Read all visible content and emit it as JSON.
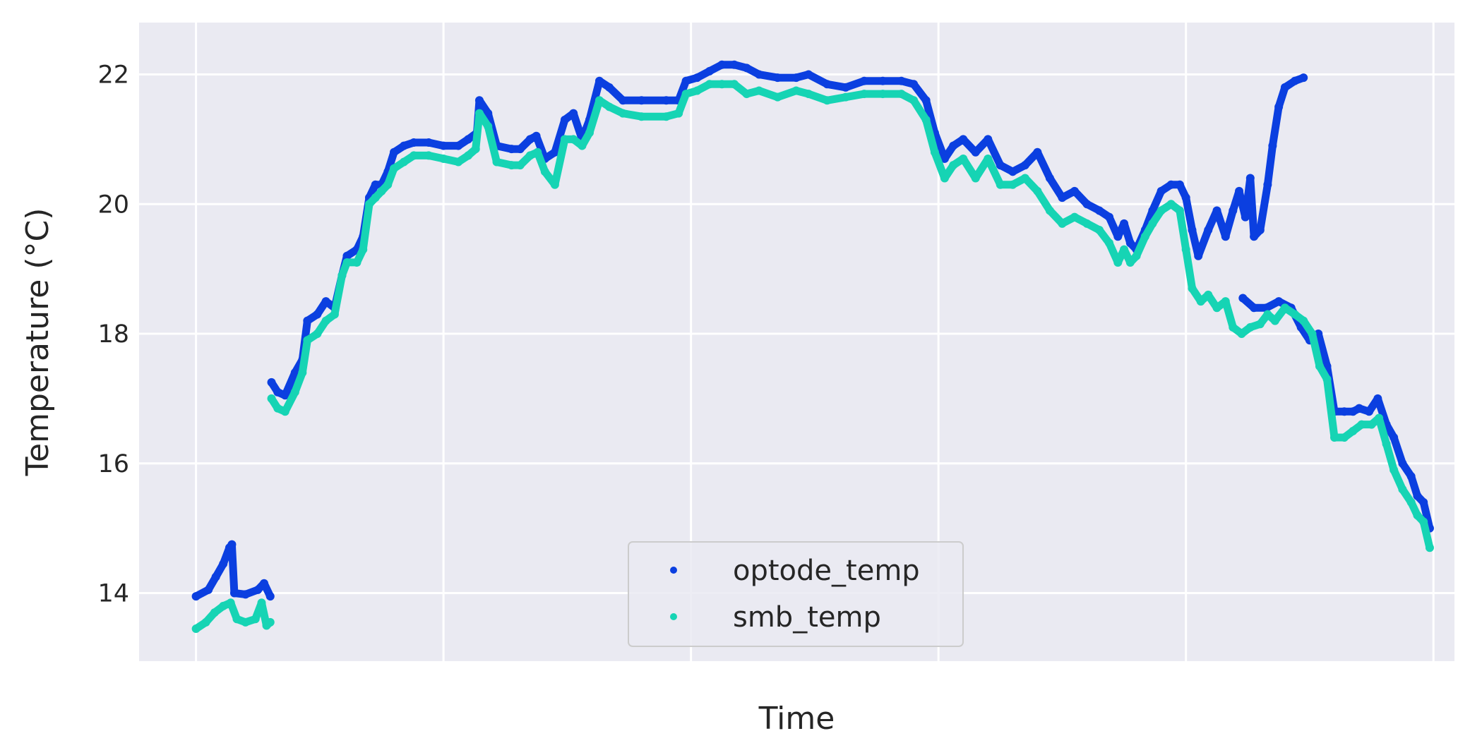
{
  "chart_data": {
    "type": "scatter",
    "title": "",
    "xlabel": "Time",
    "ylabel": "Temperature (°C)",
    "x_ticks_labeled": false,
    "ylim": [
      12.95,
      22.8
    ],
    "xlim": [
      -0.046,
      1.017
    ],
    "yticks": [
      14,
      16,
      18,
      20,
      22
    ],
    "ytick_labels": [
      "14",
      "16",
      "18",
      "20",
      "22"
    ],
    "grid": true,
    "legend_position": "lower center",
    "series": [
      {
        "name": "optode_temp",
        "color": "#0b3fe0",
        "points": [
          [
            0.0,
            13.95
          ],
          [
            0.01,
            14.05
          ],
          [
            0.016,
            14.25
          ],
          [
            0.022,
            14.45
          ],
          [
            0.027,
            14.7
          ],
          [
            0.029,
            14.75
          ],
          [
            0.031,
            14.0
          ],
          [
            0.04,
            13.98
          ],
          [
            0.05,
            14.05
          ],
          [
            0.055,
            14.15
          ],
          [
            0.06,
            13.95
          ],
          [
            0.061,
            17.25
          ],
          [
            0.066,
            17.1
          ],
          [
            0.072,
            17.05
          ],
          [
            0.08,
            17.4
          ],
          [
            0.086,
            17.6
          ],
          [
            0.09,
            18.2
          ],
          [
            0.098,
            18.3
          ],
          [
            0.105,
            18.5
          ],
          [
            0.112,
            18.4
          ],
          [
            0.118,
            18.9
          ],
          [
            0.122,
            19.2
          ],
          [
            0.13,
            19.3
          ],
          [
            0.135,
            19.5
          ],
          [
            0.14,
            20.1
          ],
          [
            0.145,
            20.3
          ],
          [
            0.15,
            20.3
          ],
          [
            0.155,
            20.5
          ],
          [
            0.16,
            20.8
          ],
          [
            0.168,
            20.9
          ],
          [
            0.176,
            20.95
          ],
          [
            0.188,
            20.95
          ],
          [
            0.2,
            20.9
          ],
          [
            0.212,
            20.9
          ],
          [
            0.22,
            21.0
          ],
          [
            0.227,
            21.1
          ],
          [
            0.229,
            21.6
          ],
          [
            0.236,
            21.4
          ],
          [
            0.243,
            20.9
          ],
          [
            0.255,
            20.85
          ],
          [
            0.262,
            20.85
          ],
          [
            0.27,
            21.0
          ],
          [
            0.275,
            21.05
          ],
          [
            0.282,
            20.7
          ],
          [
            0.29,
            20.8
          ],
          [
            0.298,
            21.3
          ],
          [
            0.305,
            21.4
          ],
          [
            0.312,
            21.0
          ],
          [
            0.318,
            21.3
          ],
          [
            0.326,
            21.9
          ],
          [
            0.334,
            21.8
          ],
          [
            0.345,
            21.6
          ],
          [
            0.36,
            21.6
          ],
          [
            0.38,
            21.6
          ],
          [
            0.39,
            21.6
          ],
          [
            0.396,
            21.9
          ],
          [
            0.405,
            21.95
          ],
          [
            0.415,
            22.05
          ],
          [
            0.425,
            22.15
          ],
          [
            0.435,
            22.15
          ],
          [
            0.445,
            22.1
          ],
          [
            0.455,
            22.0
          ],
          [
            0.47,
            21.95
          ],
          [
            0.485,
            21.95
          ],
          [
            0.495,
            22.0
          ],
          [
            0.51,
            21.85
          ],
          [
            0.525,
            21.8
          ],
          [
            0.54,
            21.9
          ],
          [
            0.555,
            21.9
          ],
          [
            0.57,
            21.9
          ],
          [
            0.58,
            21.85
          ],
          [
            0.59,
            21.6
          ],
          [
            0.597,
            21.1
          ],
          [
            0.605,
            20.7
          ],
          [
            0.612,
            20.9
          ],
          [
            0.62,
            21.0
          ],
          [
            0.63,
            20.8
          ],
          [
            0.64,
            21.0
          ],
          [
            0.65,
            20.6
          ],
          [
            0.66,
            20.5
          ],
          [
            0.67,
            20.6
          ],
          [
            0.68,
            20.8
          ],
          [
            0.69,
            20.4
          ],
          [
            0.7,
            20.1
          ],
          [
            0.71,
            20.2
          ],
          [
            0.72,
            20.0
          ],
          [
            0.73,
            19.9
          ],
          [
            0.738,
            19.8
          ],
          [
            0.745,
            19.5
          ],
          [
            0.75,
            19.7
          ],
          [
            0.755,
            19.4
          ],
          [
            0.76,
            19.3
          ],
          [
            0.767,
            19.6
          ],
          [
            0.773,
            19.9
          ],
          [
            0.78,
            20.2
          ],
          [
            0.788,
            20.3
          ],
          [
            0.795,
            20.3
          ],
          [
            0.8,
            20.1
          ],
          [
            0.805,
            19.6
          ],
          [
            0.81,
            19.2
          ],
          [
            0.818,
            19.6
          ],
          [
            0.825,
            19.9
          ],
          [
            0.832,
            19.5
          ],
          [
            0.838,
            19.9
          ],
          [
            0.843,
            20.2
          ],
          [
            0.848,
            19.8
          ],
          [
            0.852,
            20.4
          ],
          [
            0.855,
            19.5
          ],
          [
            0.86,
            19.6
          ],
          [
            0.866,
            20.3
          ],
          [
            0.87,
            20.9
          ],
          [
            0.875,
            21.5
          ],
          [
            0.88,
            21.8
          ],
          [
            0.888,
            21.9
          ],
          [
            0.895,
            21.95
          ],
          [
            0.846,
            18.55
          ],
          [
            0.855,
            18.4
          ],
          [
            0.865,
            18.4
          ],
          [
            0.875,
            18.5
          ],
          [
            0.885,
            18.4
          ],
          [
            0.893,
            18.1
          ],
          [
            0.9,
            17.9
          ],
          [
            0.907,
            18.0
          ],
          [
            0.914,
            17.5
          ],
          [
            0.92,
            16.8
          ],
          [
            0.928,
            16.8
          ],
          [
            0.935,
            16.8
          ],
          [
            0.94,
            16.85
          ],
          [
            0.948,
            16.8
          ],
          [
            0.955,
            17.0
          ],
          [
            0.962,
            16.6
          ],
          [
            0.968,
            16.4
          ],
          [
            0.975,
            16.0
          ],
          [
            0.982,
            15.8
          ],
          [
            0.987,
            15.5
          ],
          [
            0.992,
            15.4
          ],
          [
            0.997,
            15.0
          ]
        ]
      },
      {
        "name": "smb_temp",
        "color": "#16d4b4",
        "points": [
          [
            0.0,
            13.45
          ],
          [
            0.008,
            13.55
          ],
          [
            0.015,
            13.7
          ],
          [
            0.022,
            13.8
          ],
          [
            0.028,
            13.85
          ],
          [
            0.033,
            13.6
          ],
          [
            0.04,
            13.55
          ],
          [
            0.048,
            13.6
          ],
          [
            0.053,
            13.85
          ],
          [
            0.057,
            13.5
          ],
          [
            0.06,
            13.55
          ],
          [
            0.061,
            17.0
          ],
          [
            0.066,
            16.85
          ],
          [
            0.072,
            16.8
          ],
          [
            0.08,
            17.1
          ],
          [
            0.086,
            17.4
          ],
          [
            0.09,
            17.9
          ],
          [
            0.098,
            18.0
          ],
          [
            0.105,
            18.2
          ],
          [
            0.112,
            18.3
          ],
          [
            0.118,
            18.9
          ],
          [
            0.122,
            19.1
          ],
          [
            0.13,
            19.1
          ],
          [
            0.135,
            19.3
          ],
          [
            0.14,
            20.0
          ],
          [
            0.145,
            20.1
          ],
          [
            0.15,
            20.2
          ],
          [
            0.155,
            20.3
          ],
          [
            0.16,
            20.55
          ],
          [
            0.168,
            20.65
          ],
          [
            0.176,
            20.75
          ],
          [
            0.188,
            20.75
          ],
          [
            0.2,
            20.7
          ],
          [
            0.212,
            20.65
          ],
          [
            0.22,
            20.75
          ],
          [
            0.226,
            20.85
          ],
          [
            0.229,
            21.4
          ],
          [
            0.236,
            21.2
          ],
          [
            0.243,
            20.65
          ],
          [
            0.255,
            20.6
          ],
          [
            0.262,
            20.6
          ],
          [
            0.27,
            20.75
          ],
          [
            0.276,
            20.8
          ],
          [
            0.282,
            20.5
          ],
          [
            0.29,
            20.3
          ],
          [
            0.298,
            21.0
          ],
          [
            0.305,
            21.0
          ],
          [
            0.312,
            20.9
          ],
          [
            0.318,
            21.1
          ],
          [
            0.326,
            21.6
          ],
          [
            0.334,
            21.5
          ],
          [
            0.345,
            21.4
          ],
          [
            0.36,
            21.35
          ],
          [
            0.38,
            21.35
          ],
          [
            0.39,
            21.4
          ],
          [
            0.396,
            21.7
          ],
          [
            0.405,
            21.75
          ],
          [
            0.415,
            21.85
          ],
          [
            0.425,
            21.85
          ],
          [
            0.435,
            21.85
          ],
          [
            0.445,
            21.7
          ],
          [
            0.455,
            21.75
          ],
          [
            0.47,
            21.65
          ],
          [
            0.485,
            21.75
          ],
          [
            0.495,
            21.7
          ],
          [
            0.51,
            21.6
          ],
          [
            0.525,
            21.65
          ],
          [
            0.54,
            21.7
          ],
          [
            0.555,
            21.7
          ],
          [
            0.57,
            21.7
          ],
          [
            0.58,
            21.6
          ],
          [
            0.59,
            21.3
          ],
          [
            0.597,
            20.8
          ],
          [
            0.605,
            20.4
          ],
          [
            0.612,
            20.6
          ],
          [
            0.62,
            20.7
          ],
          [
            0.63,
            20.4
          ],
          [
            0.64,
            20.7
          ],
          [
            0.65,
            20.3
          ],
          [
            0.66,
            20.3
          ],
          [
            0.67,
            20.4
          ],
          [
            0.68,
            20.2
          ],
          [
            0.69,
            19.9
          ],
          [
            0.7,
            19.7
          ],
          [
            0.71,
            19.8
          ],
          [
            0.72,
            19.7
          ],
          [
            0.73,
            19.6
          ],
          [
            0.738,
            19.4
          ],
          [
            0.745,
            19.1
          ],
          [
            0.75,
            19.3
          ],
          [
            0.755,
            19.1
          ],
          [
            0.76,
            19.2
          ],
          [
            0.767,
            19.5
          ],
          [
            0.773,
            19.7
          ],
          [
            0.78,
            19.9
          ],
          [
            0.788,
            20.0
          ],
          [
            0.795,
            19.9
          ],
          [
            0.8,
            19.3
          ],
          [
            0.805,
            18.7
          ],
          [
            0.812,
            18.5
          ],
          [
            0.818,
            18.6
          ],
          [
            0.825,
            18.4
          ],
          [
            0.832,
            18.5
          ],
          [
            0.838,
            18.1
          ],
          [
            0.845,
            18.0
          ],
          [
            0.852,
            18.1
          ],
          [
            0.86,
            18.15
          ],
          [
            0.866,
            18.3
          ],
          [
            0.872,
            18.2
          ],
          [
            0.88,
            18.4
          ],
          [
            0.888,
            18.3
          ],
          [
            0.895,
            18.2
          ],
          [
            0.902,
            18.0
          ],
          [
            0.908,
            17.5
          ],
          [
            0.914,
            17.3
          ],
          [
            0.92,
            16.4
          ],
          [
            0.928,
            16.4
          ],
          [
            0.935,
            16.5
          ],
          [
            0.942,
            16.6
          ],
          [
            0.95,
            16.6
          ],
          [
            0.956,
            16.7
          ],
          [
            0.962,
            16.3
          ],
          [
            0.968,
            15.9
          ],
          [
            0.975,
            15.6
          ],
          [
            0.982,
            15.4
          ],
          [
            0.987,
            15.2
          ],
          [
            0.992,
            15.1
          ],
          [
            0.997,
            14.7
          ]
        ]
      }
    ],
    "legend": [
      {
        "name": "optode_temp",
        "color": "#0b3fe0"
      },
      {
        "name": "smb_temp",
        "color": "#16d4b4"
      }
    ],
    "colors": {
      "plot_background": "#eaeaf2",
      "grid": "#ffffff",
      "text": "#262626"
    }
  }
}
